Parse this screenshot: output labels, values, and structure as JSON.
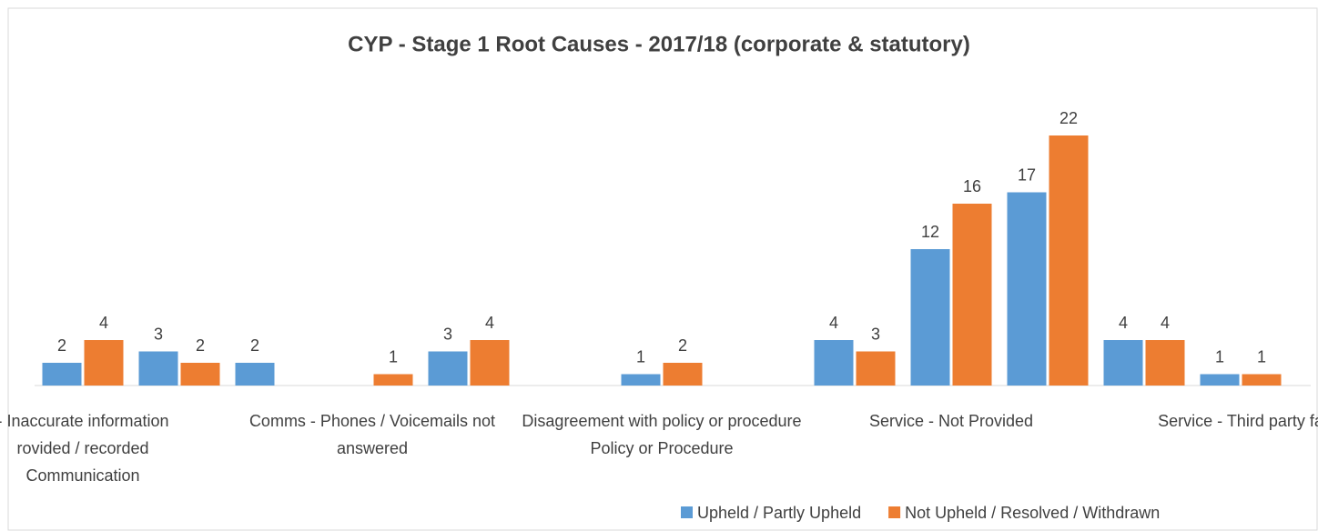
{
  "chart_data": {
    "type": "bar",
    "title": "CYP - Stage 1 Root Causes - 2017/18  (corporate & statutory)",
    "categories": [
      "-  Inaccurate information\nrovided / recorded\nCommunication",
      null,
      null,
      "Comms - Phones / Voicemails not\nanswered",
      null,
      null,
      "Disagreement with policy or procedure\nPolicy or Procedure",
      null,
      null,
      "Service - Not Provided",
      null,
      null,
      "Service - Third party fa"
    ],
    "series": [
      {
        "name": "Upheld / Partly Upheld",
        "color": "#5b9bd5",
        "values": [
          2,
          3,
          2,
          null,
          3,
          null,
          1,
          null,
          4,
          12,
          17,
          4,
          1
        ]
      },
      {
        "name": "Not Upheld / Resolved / Withdrawn",
        "color": "#ed7d31",
        "values": [
          4,
          2,
          null,
          1,
          4,
          null,
          2,
          null,
          3,
          16,
          22,
          4,
          1
        ]
      }
    ],
    "ylim": [
      0,
      25
    ],
    "legend": "bottom"
  }
}
